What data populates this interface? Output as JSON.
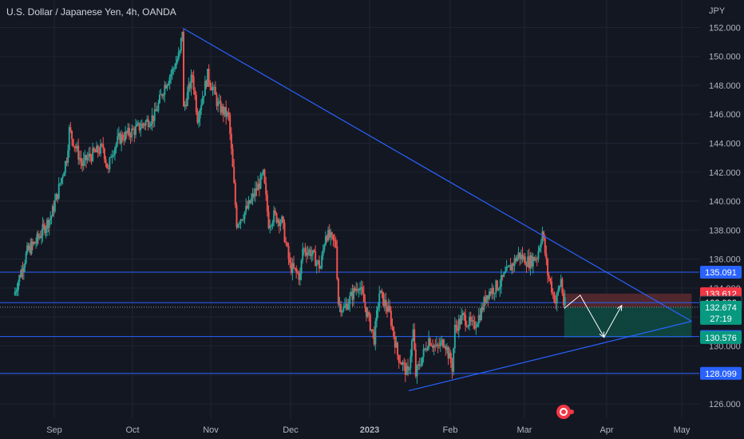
{
  "header": {
    "title": "U.S. Dollar / Japanese Yen, 4h, OANDA"
  },
  "axis_currency": "JPY",
  "colors": {
    "background": "#131722",
    "grid": "#1f2433",
    "up_candle": "#26a69a",
    "down_candle": "#ef5350",
    "trendline": "#2962ff",
    "axis_text": "#b2b5be",
    "badge_blue": "#2962ff",
    "badge_red": "#f23645",
    "badge_gray": "#5d606b",
    "badge_dark": "#131722",
    "badge_green": "#089981",
    "stop_zone": "#5a2a2f",
    "target_zone": "#0f4c43",
    "projection": "#ffffff"
  },
  "chart_data": {
    "type": "candlestick",
    "title": "U.S. Dollar / Japanese Yen, 4h, OANDA",
    "x_ticks": [
      "Sep",
      "Oct",
      "Nov",
      "Dec",
      "2023",
      "Feb",
      "Mar",
      "Apr",
      "May"
    ],
    "y_ticks": [
      "126.000",
      "128.000",
      "130.000",
      "132.000",
      "134.000",
      "136.000",
      "138.000",
      "140.000",
      "142.000",
      "144.000",
      "146.000",
      "148.000",
      "150.000",
      "152.000"
    ],
    "ylim": [
      125.0,
      153.9
    ],
    "grid": true,
    "price_path": [
      [
        "2022-08-14",
        133.5
      ],
      [
        "2022-08-20",
        136.5
      ],
      [
        "2022-08-24",
        137.2
      ],
      [
        "2022-08-31",
        139.0
      ],
      [
        "2022-09-02",
        140.2
      ],
      [
        "2022-09-06",
        143.0
      ],
      [
        "2022-09-07",
        144.9
      ],
      [
        "2022-09-12",
        142.5
      ],
      [
        "2022-09-14",
        143.0
      ],
      [
        "2022-09-20",
        143.7
      ],
      [
        "2022-09-22",
        142.0
      ],
      [
        "2022-09-23",
        143.3
      ],
      [
        "2022-09-26",
        144.3
      ],
      [
        "2022-10-03",
        145.0
      ],
      [
        "2022-10-10",
        145.9
      ],
      [
        "2022-10-14",
        148.0
      ],
      [
        "2022-10-17",
        149.0
      ],
      [
        "2022-10-20",
        150.2
      ],
      [
        "2022-10-21",
        151.9
      ],
      [
        "2022-10-21",
        146.0
      ],
      [
        "2022-10-25",
        148.7
      ],
      [
        "2022-10-27",
        145.8
      ],
      [
        "2022-10-31",
        148.7
      ],
      [
        "2022-11-02",
        147.8
      ],
      [
        "2022-11-04",
        146.6
      ],
      [
        "2022-11-08",
        145.8
      ],
      [
        "2022-11-10",
        141.0
      ],
      [
        "2022-11-11",
        138.5
      ],
      [
        "2022-11-15",
        139.5
      ],
      [
        "2022-11-21",
        141.8
      ],
      [
        "2022-11-23",
        138.5
      ],
      [
        "2022-11-25",
        139.0
      ],
      [
        "2022-11-28",
        138.6
      ],
      [
        "2022-12-01",
        135.5
      ],
      [
        "2022-12-05",
        134.8
      ],
      [
        "2022-12-06",
        136.7
      ],
      [
        "2022-12-09",
        136.5
      ],
      [
        "2022-12-13",
        135.4
      ],
      [
        "2022-12-15",
        137.8
      ],
      [
        "2022-12-19",
        137.0
      ],
      [
        "2022-12-20",
        133.0
      ],
      [
        "2022-12-22",
        132.5
      ],
      [
        "2022-12-28",
        134.3
      ],
      [
        "2023-01-03",
        130.5
      ],
      [
        "2023-01-05",
        133.7
      ],
      [
        "2023-01-09",
        132.2
      ],
      [
        "2023-01-12",
        129.4
      ],
      [
        "2023-01-16",
        128.0
      ],
      [
        "2023-01-18",
        131.0
      ],
      [
        "2023-01-19",
        128.0
      ],
      [
        "2023-01-24",
        130.5
      ],
      [
        "2023-01-27",
        129.8
      ],
      [
        "2023-01-30",
        130.4
      ],
      [
        "2023-02-02",
        128.5
      ],
      [
        "2023-02-03",
        131.2
      ],
      [
        "2023-02-06",
        132.0
      ],
      [
        "2023-02-10",
        131.3
      ],
      [
        "2023-02-13",
        132.4
      ],
      [
        "2023-02-15",
        133.6
      ],
      [
        "2023-02-20",
        134.3
      ],
      [
        "2023-02-22",
        134.9
      ],
      [
        "2023-02-27",
        136.3
      ],
      [
        "2023-03-01",
        136.0
      ],
      [
        "2023-03-03",
        135.8
      ],
      [
        "2023-03-06",
        136.2
      ],
      [
        "2023-03-08",
        137.9
      ],
      [
        "2023-03-10",
        135.0
      ],
      [
        "2023-03-13",
        133.0
      ],
      [
        "2023-03-15",
        134.6
      ],
      [
        "2023-03-16",
        132.9
      ]
    ],
    "trendlines": [
      {
        "from": [
          "2022-10-21",
          151.95
        ],
        "to": [
          "2023-05-05",
          131.7
        ]
      },
      {
        "from": [
          "2023-01-16",
          126.9
        ],
        "to": [
          "2023-05-05",
          131.7
        ]
      }
    ],
    "horizontal_levels": [
      135.091,
      132.993,
      130.646,
      128.099
    ],
    "current_price_line": 132.674,
    "position": {
      "entry": 132.674,
      "stop": 133.612,
      "target": 130.576,
      "start": "2023-03-16",
      "end": "2023-05-05"
    },
    "projection_path": [
      [
        "2023-03-16",
        132.6
      ],
      [
        "2023-03-22",
        133.5
      ],
      [
        "2023-03-31",
        130.6
      ],
      [
        "2023-04-07",
        132.8
      ]
    ],
    "price_labels": [
      {
        "text": "135.091",
        "price": 135.091,
        "style": "blue"
      },
      {
        "text": "133.612",
        "price": 133.612,
        "style": "red"
      },
      {
        "text": "133.012",
        "price": 133.012,
        "style": "gray"
      },
      {
        "text": "132.993",
        "price": 132.993,
        "style": "dark"
      },
      {
        "text": "132.674",
        "price": 132.674,
        "style": "green",
        "sub": "27:19"
      },
      {
        "text": "130.646",
        "price": 130.646,
        "style": "blue"
      },
      {
        "text": "130.576",
        "price": 130.576,
        "style": "green"
      },
      {
        "text": "128.099",
        "price": 128.099,
        "style": "blue"
      }
    ]
  }
}
